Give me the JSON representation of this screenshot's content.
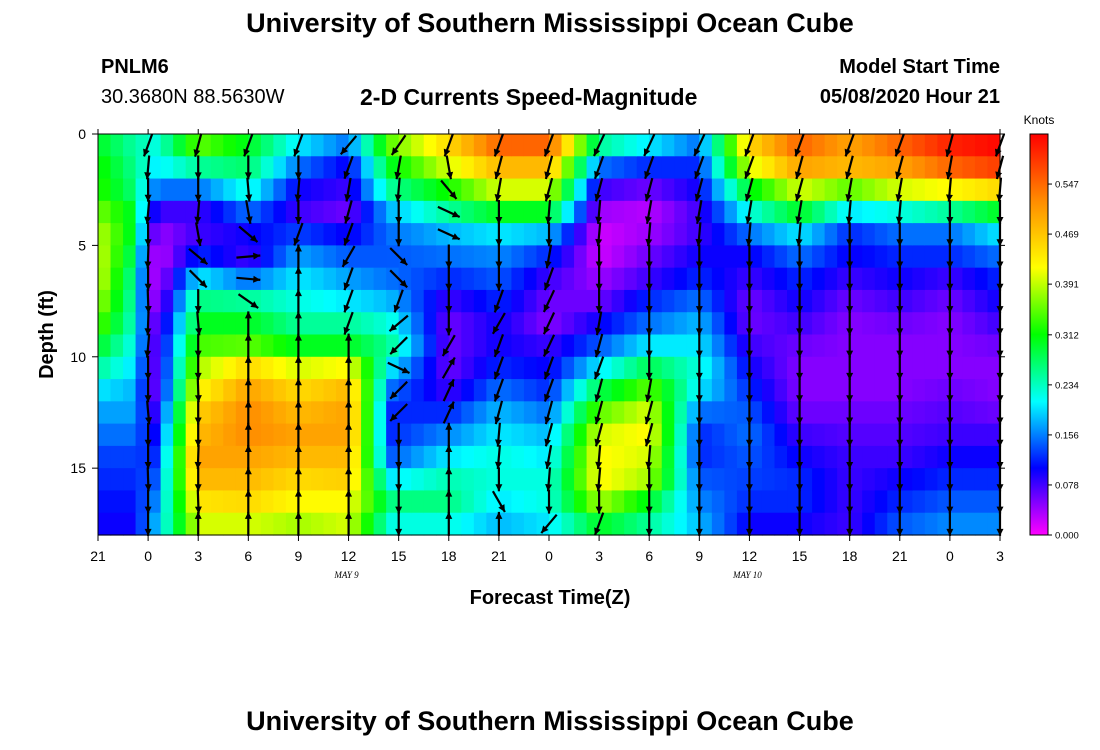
{
  "header": {
    "title": "University of Southern Mississippi Ocean Cube",
    "station_id": "PNLM6",
    "station_coords": "30.3680N 88.5630W",
    "chart_title": "2-D Currents Speed-Magnitude",
    "model_start_label": "Model Start Time",
    "model_start_value": "05/08/2020 Hour 21"
  },
  "footer": {
    "title": "University of Southern Mississippi Ocean Cube"
  },
  "chart_data": {
    "type": "heatmap",
    "title": "2-D Currents Speed-Magnitude",
    "xlabel": "Forecast Time(Z)",
    "ylabel": "Depth (ft)",
    "x_tick_labels": [
      "21",
      "0",
      "3",
      "6",
      "9",
      "12",
      "15",
      "18",
      "21",
      "0",
      "3",
      "6",
      "9",
      "12",
      "15",
      "18",
      "21",
      "0",
      "3"
    ],
    "x_range_hours": [
      0,
      54
    ],
    "x_date_labels": [
      {
        "label": "MAY 9",
        "hour": 15
      },
      {
        "label": "MAY 10",
        "hour": 39
      }
    ],
    "y_ticks": [
      0,
      5,
      10,
      15
    ],
    "ylim": [
      0,
      18
    ],
    "y_inverted": true,
    "colorbar": {
      "unit_label": "Knots",
      "ticks": [
        "0.000",
        "0.078",
        "0.156",
        "0.234",
        "0.312",
        "0.391",
        "0.469",
        "0.547"
      ],
      "range": [
        0,
        0.625
      ],
      "colors": [
        "#ff00ff",
        "#0000ff",
        "#00ffff",
        "#00ff00",
        "#ffff00",
        "#ff8c00",
        "#ff0000"
      ]
    },
    "depth_levels": 18,
    "arrow_times_hours": [
      3,
      6,
      9,
      12,
      15,
      18,
      21,
      24,
      27,
      30,
      33,
      36,
      39,
      42,
      45,
      48,
      51,
      54
    ],
    "speed_key_points": [
      {
        "t": 0,
        "speeds": [
          0.3,
          0.32,
          0.33,
          0.36,
          0.39,
          0.4,
          0.4,
          0.38,
          0.35,
          0.3,
          0.25,
          0.2,
          0.17,
          0.15,
          0.13,
          0.12,
          0.11,
          0.1
        ]
      },
      {
        "t": 2,
        "speeds": [
          0.25,
          0.26,
          0.27,
          0.3,
          0.3,
          0.28,
          0.26,
          0.25,
          0.24,
          0.22,
          0.2,
          0.18,
          0.17,
          0.15,
          0.13,
          0.12,
          0.11,
          0.1
        ]
      },
      {
        "t": 3.5,
        "speeds": [
          0.22,
          0.2,
          0.15,
          0.08,
          0.04,
          0.02,
          0.02,
          0.03,
          0.05,
          0.06,
          0.06,
          0.06,
          0.08,
          0.1,
          0.12,
          0.14,
          0.16,
          0.18
        ]
      },
      {
        "t": 6,
        "speeds": [
          0.35,
          0.25,
          0.15,
          0.08,
          0.08,
          0.12,
          0.2,
          0.26,
          0.3,
          0.34,
          0.38,
          0.42,
          0.46,
          0.48,
          0.5,
          0.48,
          0.44,
          0.4
        ]
      },
      {
        "t": 9,
        "speeds": [
          0.3,
          0.27,
          0.22,
          0.15,
          0.1,
          0.08,
          0.15,
          0.25,
          0.3,
          0.35,
          0.45,
          0.5,
          0.52,
          0.52,
          0.5,
          0.48,
          0.45,
          0.4
        ]
      },
      {
        "t": 12,
        "speeds": [
          0.2,
          0.15,
          0.1,
          0.08,
          0.13,
          0.17,
          0.2,
          0.22,
          0.25,
          0.3,
          0.4,
          0.45,
          0.48,
          0.5,
          0.48,
          0.45,
          0.42,
          0.38
        ]
      },
      {
        "t": 15,
        "speeds": [
          0.15,
          0.1,
          0.08,
          0.06,
          0.1,
          0.14,
          0.17,
          0.2,
          0.25,
          0.3,
          0.42,
          0.48,
          0.5,
          0.5,
          0.48,
          0.46,
          0.42,
          0.4
        ]
      },
      {
        "t": 17.5,
        "speeds": [
          0.35,
          0.3,
          0.25,
          0.18,
          0.15,
          0.14,
          0.15,
          0.18,
          0.22,
          0.25,
          0.2,
          0.15,
          0.12,
          0.12,
          0.14,
          0.2,
          0.26,
          0.22
        ]
      },
      {
        "t": 21,
        "speeds": [
          0.45,
          0.4,
          0.32,
          0.25,
          0.18,
          0.15,
          0.12,
          0.08,
          0.06,
          0.06,
          0.06,
          0.08,
          0.12,
          0.16,
          0.2,
          0.24,
          0.26,
          0.22
        ]
      },
      {
        "t": 24,
        "speeds": [
          0.55,
          0.48,
          0.4,
          0.3,
          0.2,
          0.16,
          0.14,
          0.12,
          0.1,
          0.1,
          0.12,
          0.15,
          0.18,
          0.2,
          0.22,
          0.22,
          0.2,
          0.18
        ]
      },
      {
        "t": 27,
        "speeds": [
          0.55,
          0.48,
          0.4,
          0.3,
          0.18,
          0.12,
          0.08,
          0.06,
          0.05,
          0.08,
          0.1,
          0.12,
          0.15,
          0.18,
          0.2,
          0.22,
          0.22,
          0.2
        ]
      },
      {
        "t": 30,
        "speeds": [
          0.25,
          0.15,
          0.08,
          0.04,
          0.02,
          0.02,
          0.04,
          0.06,
          0.1,
          0.14,
          0.2,
          0.28,
          0.35,
          0.4,
          0.42,
          0.42,
          0.38,
          0.3
        ]
      },
      {
        "t": 33,
        "speeds": [
          0.2,
          0.12,
          0.06,
          0.03,
          0.04,
          0.06,
          0.08,
          0.12,
          0.15,
          0.2,
          0.28,
          0.35,
          0.4,
          0.42,
          0.4,
          0.38,
          0.3,
          0.25
        ]
      },
      {
        "t": 36,
        "speeds": [
          0.15,
          0.12,
          0.1,
          0.08,
          0.08,
          0.1,
          0.12,
          0.15,
          0.18,
          0.2,
          0.22,
          0.2,
          0.15,
          0.12,
          0.12,
          0.14,
          0.16,
          0.18
        ]
      },
      {
        "t": 39,
        "speeds": [
          0.45,
          0.4,
          0.3,
          0.22,
          0.15,
          0.1,
          0.08,
          0.06,
          0.06,
          0.08,
          0.1,
          0.12,
          0.14,
          0.15,
          0.14,
          0.13,
          0.12,
          0.1
        ]
      },
      {
        "t": 42,
        "speeds": [
          0.55,
          0.5,
          0.4,
          0.3,
          0.2,
          0.15,
          0.12,
          0.1,
          0.08,
          0.06,
          0.05,
          0.05,
          0.06,
          0.08,
          0.1,
          0.12,
          0.12,
          0.1
        ]
      },
      {
        "t": 45,
        "speeds": [
          0.5,
          0.48,
          0.35,
          0.2,
          0.12,
          0.1,
          0.08,
          0.06,
          0.05,
          0.05,
          0.05,
          0.05,
          0.06,
          0.07,
          0.08,
          0.08,
          0.08,
          0.08
        ]
      },
      {
        "t": 48,
        "speeds": [
          0.55,
          0.5,
          0.4,
          0.22,
          0.15,
          0.12,
          0.1,
          0.08,
          0.06,
          0.05,
          0.05,
          0.05,
          0.06,
          0.07,
          0.08,
          0.1,
          0.12,
          0.14
        ]
      },
      {
        "t": 51,
        "speeds": [
          0.6,
          0.55,
          0.42,
          0.25,
          0.15,
          0.12,
          0.08,
          0.06,
          0.05,
          0.05,
          0.05,
          0.06,
          0.07,
          0.08,
          0.1,
          0.12,
          0.14,
          0.16
        ]
      },
      {
        "t": 54,
        "speeds": [
          0.62,
          0.58,
          0.45,
          0.3,
          0.2,
          0.15,
          0.12,
          0.1,
          0.08,
          0.06,
          0.05,
          0.05,
          0.06,
          0.08,
          0.1,
          0.12,
          0.14,
          0.16
        ]
      }
    ],
    "vector_profiles": [
      {
        "t": 3,
        "dirs": [
          200,
          185,
          180,
          185,
          180,
          182,
          180,
          178,
          182,
          185,
          180,
          180,
          175,
          180,
          180,
          178,
          180,
          180
        ]
      },
      {
        "t": 6,
        "dirs": [
          195,
          180,
          180,
          185,
          170,
          130,
          135,
          180,
          175,
          180,
          180,
          178,
          180,
          180,
          182,
          180,
          178,
          0
        ]
      },
      {
        "t": 9,
        "dirs": [
          200,
          180,
          175,
          170,
          130,
          85,
          95,
          125,
          0,
          0,
          0,
          0,
          0,
          0,
          0,
          0,
          0,
          0
        ]
      },
      {
        "t": 12,
        "dirs": [
          200,
          180,
          185,
          180,
          200,
          0,
          0,
          0,
          0,
          0,
          0,
          0,
          0,
          0,
          0,
          0,
          0,
          0
        ]
      },
      {
        "t": 15,
        "dirs": [
          220,
          200,
          190,
          195,
          200,
          210,
          200,
          200,
          200,
          0,
          0,
          0,
          0,
          0,
          0,
          0,
          0,
          0
        ]
      },
      {
        "t": 18,
        "dirs": [
          215,
          190,
          185,
          180,
          180,
          135,
          135,
          200,
          230,
          225,
          115,
          225,
          225,
          180,
          180,
          180,
          180,
          180
        ]
      },
      {
        "t": 21,
        "dirs": [
          200,
          170,
          140,
          115,
          115,
          180,
          180,
          180,
          180,
          210,
          30,
          25,
          25,
          0,
          0,
          0,
          0,
          0
        ]
      },
      {
        "t": 24,
        "dirs": [
          200,
          195,
          190,
          180,
          180,
          180,
          180,
          200,
          210,
          200,
          200,
          200,
          195,
          185,
          185,
          180,
          150,
          0
        ]
      },
      {
        "t": 27,
        "dirs": [
          200,
          195,
          195,
          185,
          180,
          190,
          200,
          205,
          205,
          205,
          200,
          200,
          195,
          195,
          190,
          185,
          180,
          220
        ]
      },
      {
        "t": 30,
        "dirs": [
          205,
          200,
          195,
          185,
          185,
          180,
          180,
          180,
          190,
          195,
          200,
          195,
          195,
          195,
          185,
          185,
          180,
          200
        ]
      },
      {
        "t": 33,
        "dirs": [
          205,
          200,
          195,
          190,
          185,
          180,
          180,
          180,
          180,
          180,
          180,
          190,
          195,
          195,
          185,
          180,
          180,
          180
        ]
      },
      {
        "t": 36,
        "dirs": [
          205,
          200,
          195,
          190,
          185,
          180,
          180,
          180,
          180,
          180,
          180,
          180,
          180,
          180,
          180,
          180,
          180,
          180
        ]
      },
      {
        "t": 39,
        "dirs": [
          200,
          200,
          195,
          190,
          185,
          180,
          180,
          180,
          180,
          180,
          180,
          180,
          180,
          180,
          180,
          180,
          180,
          180
        ]
      },
      {
        "t": 42,
        "dirs": [
          200,
          195,
          195,
          190,
          185,
          180,
          180,
          180,
          180,
          180,
          180,
          180,
          180,
          180,
          180,
          180,
          180,
          180
        ]
      },
      {
        "t": 45,
        "dirs": [
          200,
          195,
          190,
          185,
          180,
          180,
          180,
          180,
          180,
          180,
          180,
          180,
          180,
          180,
          180,
          180,
          180,
          180
        ]
      },
      {
        "t": 48,
        "dirs": [
          200,
          195,
          190,
          185,
          180,
          180,
          180,
          180,
          180,
          180,
          180,
          180,
          180,
          180,
          180,
          180,
          180,
          180
        ]
      },
      {
        "t": 51,
        "dirs": [
          195,
          190,
          185,
          180,
          180,
          180,
          180,
          180,
          180,
          180,
          180,
          180,
          180,
          180,
          180,
          180,
          180,
          180
        ]
      },
      {
        "t": 54,
        "dirs": [
          200,
          195,
          185,
          180,
          180,
          180,
          180,
          180,
          180,
          180,
          180,
          180,
          180,
          180,
          180,
          180,
          180,
          180
        ]
      }
    ]
  }
}
